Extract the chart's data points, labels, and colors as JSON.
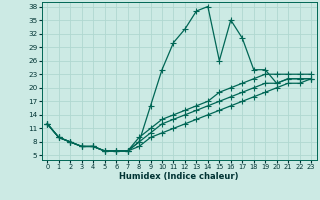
{
  "xlabel": "Humidex (Indice chaleur)",
  "ylabel": "",
  "background_color": "#cceae4",
  "grid_color": "#b0d8d0",
  "line_color": "#006655",
  "xlim": [
    -0.5,
    23.5
  ],
  "ylim": [
    4,
    39
  ],
  "xticks": [
    0,
    1,
    2,
    3,
    4,
    5,
    6,
    7,
    8,
    9,
    10,
    11,
    12,
    13,
    14,
    15,
    16,
    17,
    18,
    19,
    20,
    21,
    22,
    23
  ],
  "yticks": [
    5,
    8,
    11,
    14,
    17,
    20,
    23,
    26,
    29,
    32,
    35,
    38
  ],
  "lines": [
    {
      "x": [
        0,
        1,
        2,
        3,
        4,
        5,
        6,
        7,
        8,
        9,
        10,
        11,
        12,
        13,
        14,
        15,
        16,
        17,
        18,
        19,
        20,
        21,
        22,
        23
      ],
      "y": [
        12,
        9,
        8,
        7,
        7,
        6,
        6,
        6,
        8,
        16,
        24,
        30,
        33,
        37,
        38,
        26,
        35,
        31,
        24,
        24,
        21,
        22,
        22,
        22
      ]
    },
    {
      "x": [
        0,
        1,
        2,
        3,
        4,
        5,
        6,
        7,
        8,
        9,
        10,
        11,
        12,
        13,
        14,
        15,
        16,
        17,
        18,
        19,
        20,
        21,
        22,
        23
      ],
      "y": [
        12,
        9,
        8,
        7,
        7,
        6,
        6,
        6,
        9,
        11,
        13,
        14,
        15,
        16,
        17,
        19,
        20,
        21,
        22,
        23,
        23,
        23,
        23,
        23
      ]
    },
    {
      "x": [
        0,
        1,
        2,
        3,
        4,
        5,
        6,
        7,
        8,
        9,
        10,
        11,
        12,
        13,
        14,
        15,
        16,
        17,
        18,
        19,
        20,
        21,
        22,
        23
      ],
      "y": [
        12,
        9,
        8,
        7,
        7,
        6,
        6,
        6,
        8,
        10,
        12,
        13,
        14,
        15,
        16,
        17,
        18,
        19,
        20,
        21,
        21,
        22,
        22,
        22
      ]
    },
    {
      "x": [
        0,
        1,
        2,
        3,
        4,
        5,
        6,
        7,
        8,
        9,
        10,
        11,
        12,
        13,
        14,
        15,
        16,
        17,
        18,
        19,
        20,
        21,
        22,
        23
      ],
      "y": [
        12,
        9,
        8,
        7,
        7,
        6,
        6,
        6,
        7,
        9,
        10,
        11,
        12,
        13,
        14,
        15,
        16,
        17,
        18,
        19,
        20,
        21,
        21,
        22
      ]
    }
  ],
  "marker": "+",
  "markersize": 4,
  "markeredgewidth": 0.8,
  "linewidth": 0.9,
  "tick_fontsize_x": 4.8,
  "tick_fontsize_y": 5.2,
  "xlabel_fontsize": 6.0
}
